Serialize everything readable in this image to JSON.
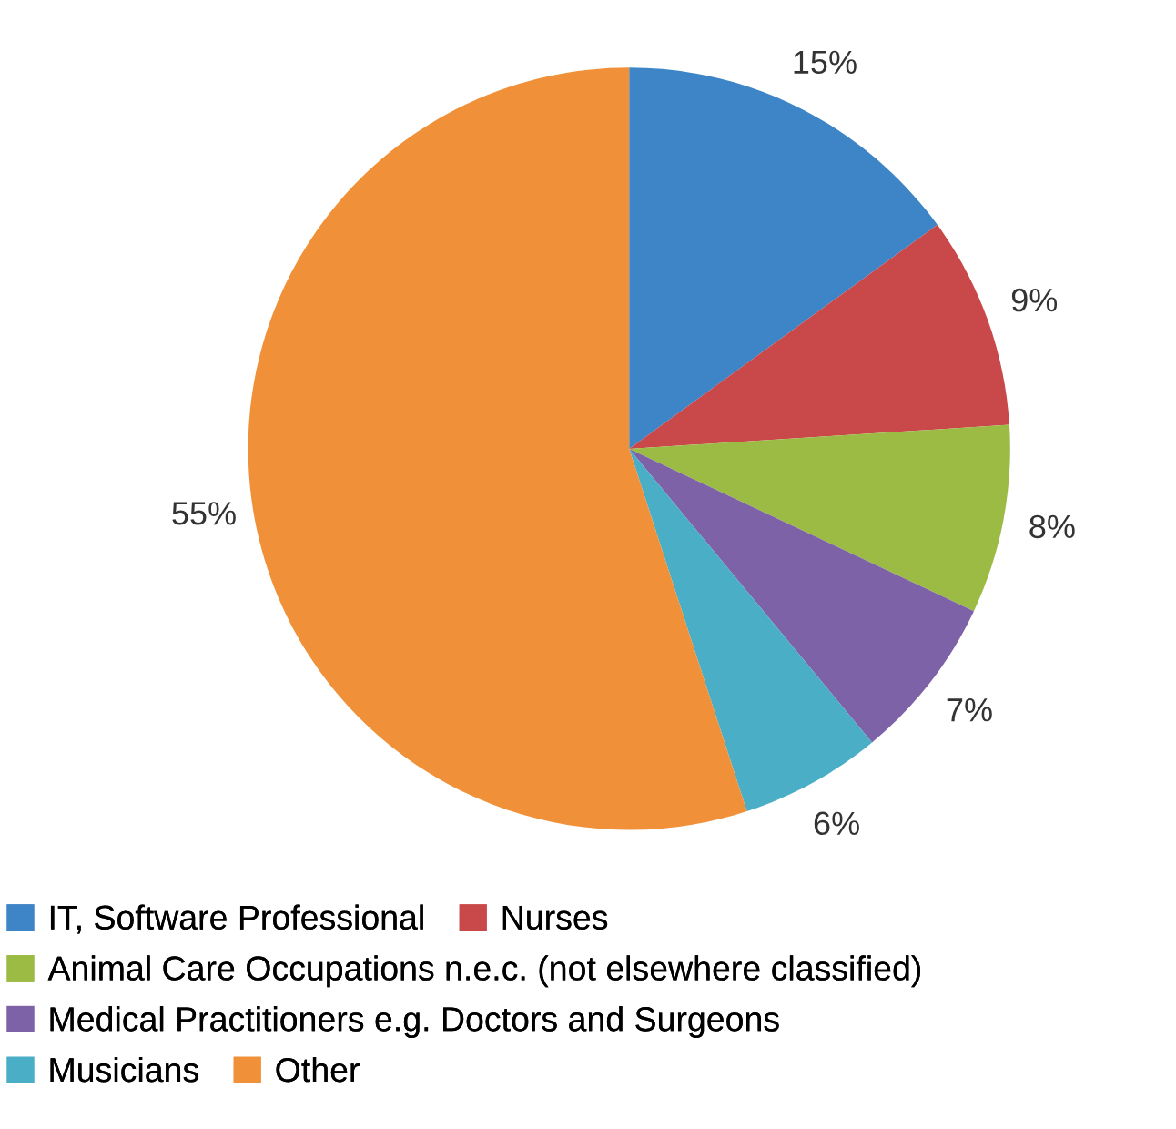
{
  "chart_data": {
    "type": "pie",
    "categories": [
      "IT, Software Professional",
      "Nurses",
      "Animal Care Occupations n.e.c. (not elsewhere classified)",
      "Medical Practitioners e.g. Doctors and Surgeons",
      "Musicians",
      "Other"
    ],
    "values": [
      15,
      9,
      8,
      7,
      6,
      55
    ],
    "value_labels": [
      "15%",
      "9%",
      "8%",
      "7%",
      "6%",
      "55%"
    ],
    "colors": [
      "#3d85c6",
      "#c9484a",
      "#9bbb45",
      "#7e62a8",
      "#4aaec6",
      "#f0913a"
    ],
    "legend": "bottom"
  }
}
